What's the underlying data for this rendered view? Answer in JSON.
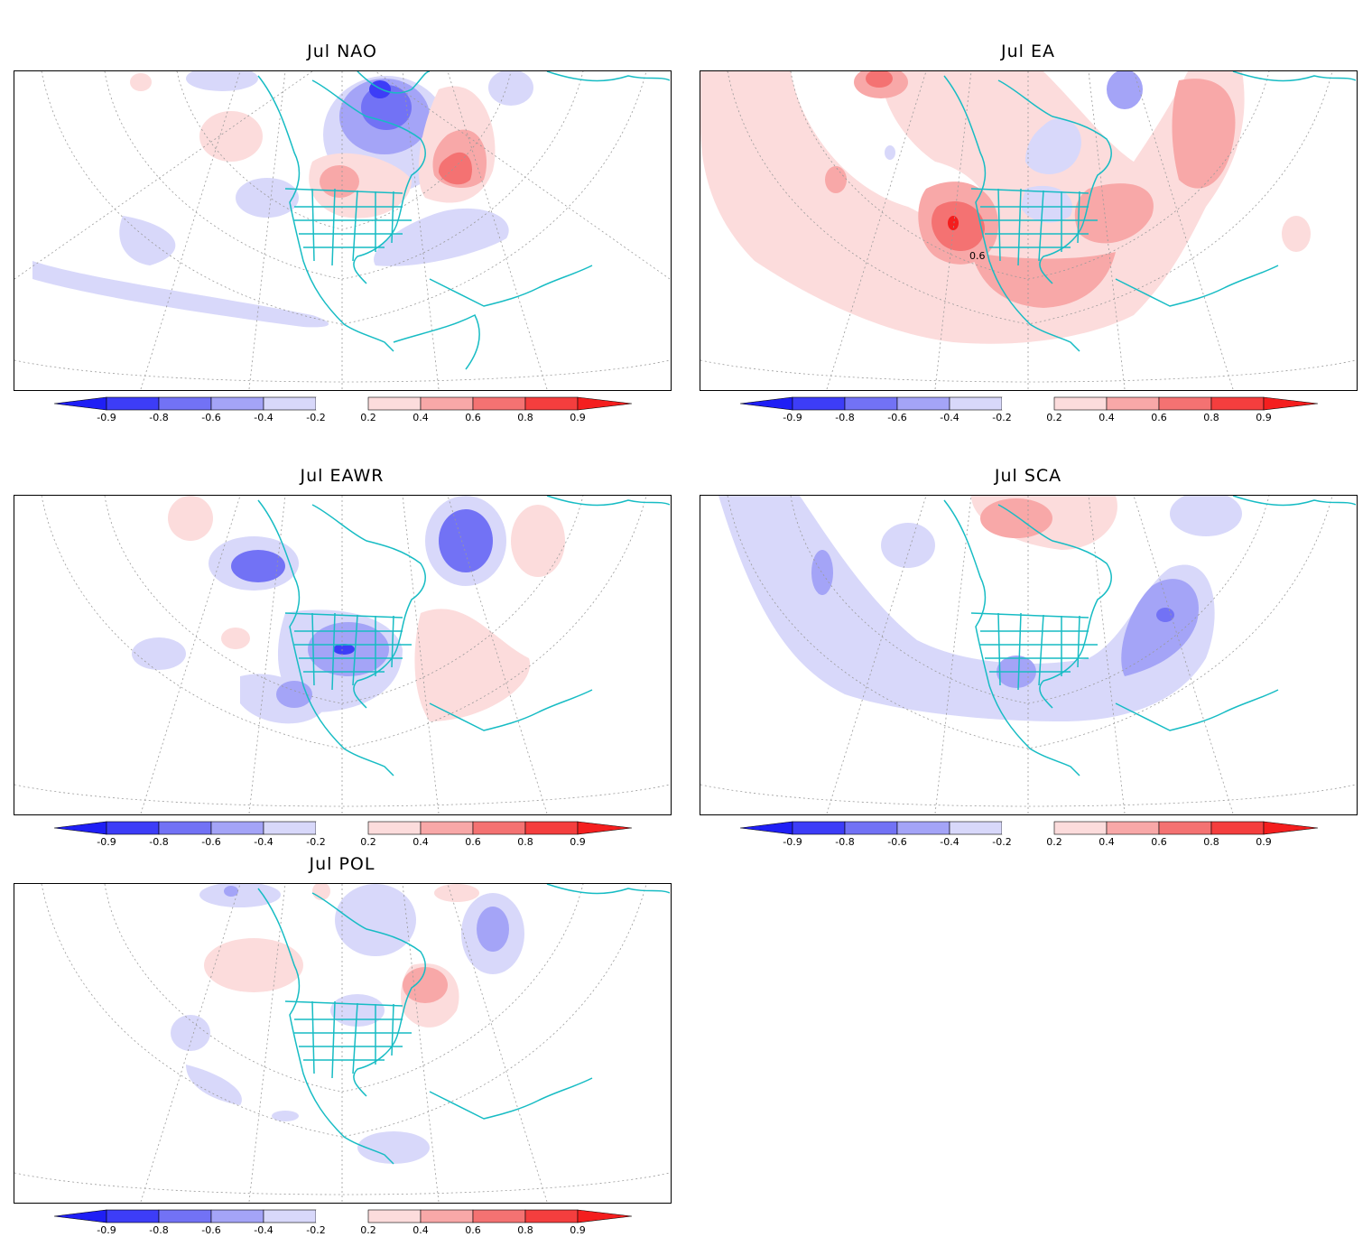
{
  "colors": {
    "neg": [
      "#1f1ff5",
      "#3d3df7",
      "#7272f5",
      "#a4a4f7",
      "#d8d8fa"
    ],
    "pos": [
      "#fcdcdc",
      "#f8a8a8",
      "#f47272",
      "#f43e3e",
      "#f41e1e"
    ],
    "coast": "#17bcc4",
    "grid": "#9a9a9a"
  },
  "colorbar_labels": [
    "-0.9",
    "-0.8",
    "-0.6",
    "-0.4",
    "-0.2",
    "0.2",
    "0.4",
    "0.6",
    "0.8",
    "0.9"
  ],
  "panels": [
    {
      "id": "nao",
      "title": "Jul NAO"
    },
    {
      "id": "ea",
      "title": "Jul EA",
      "contour_label": "0.6"
    },
    {
      "id": "eawr",
      "title": "Jul EAWR"
    },
    {
      "id": "sca",
      "title": "Jul SCA"
    },
    {
      "id": "pol",
      "title": "Jul POL"
    }
  ]
}
